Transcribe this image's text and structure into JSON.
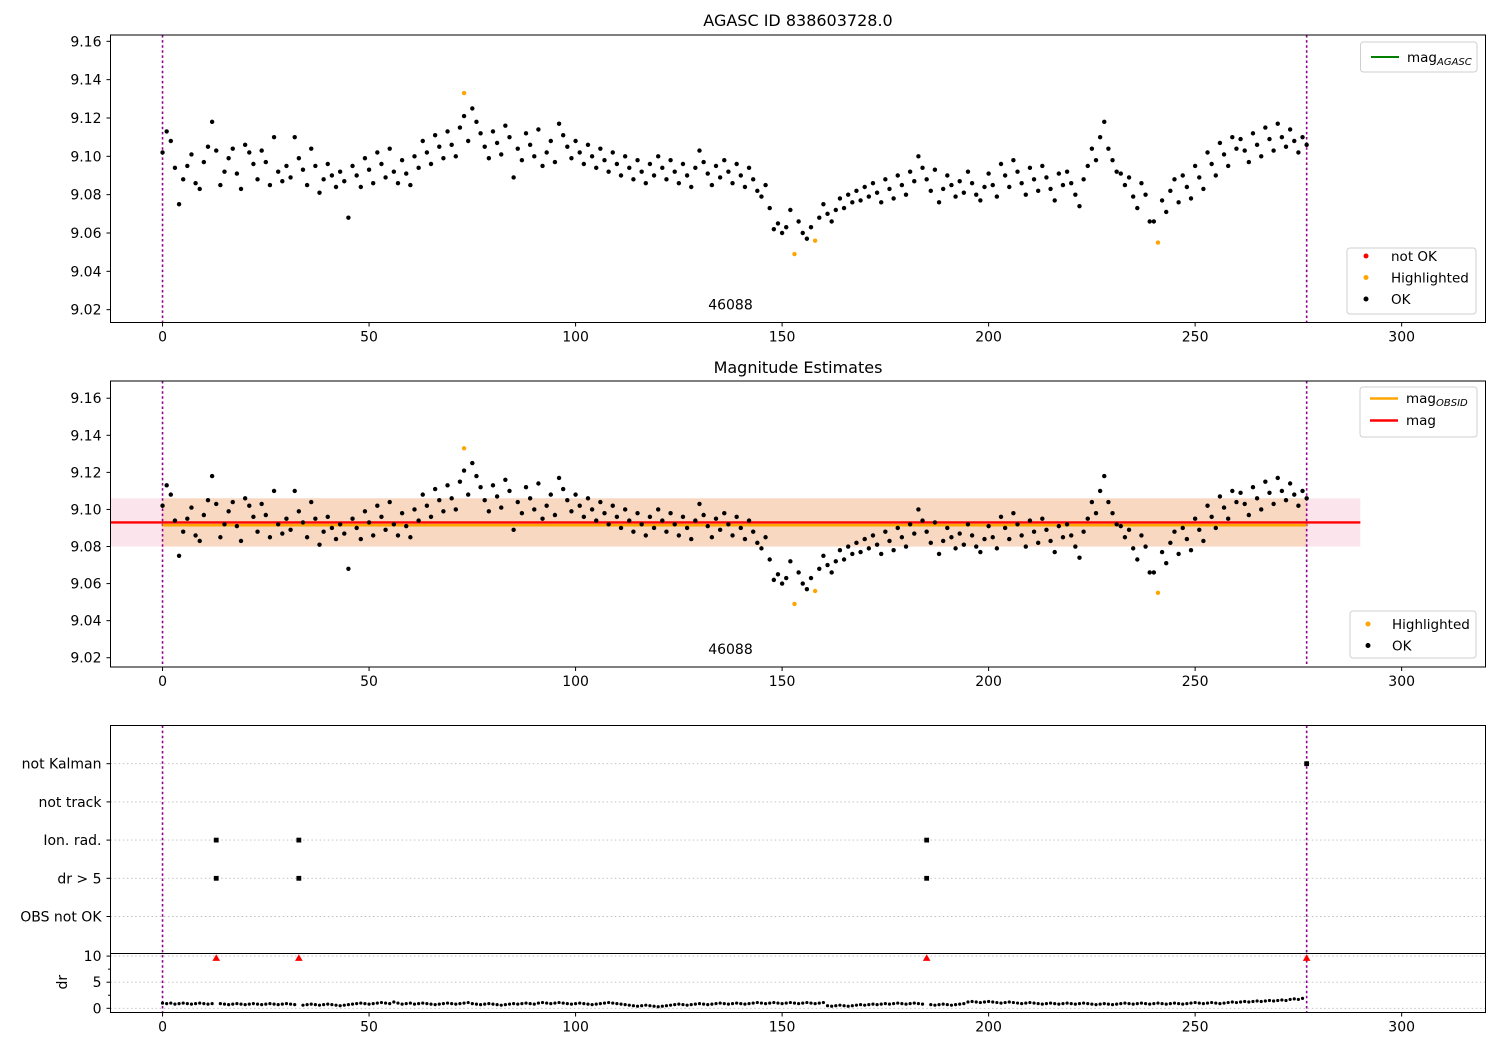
{
  "figure_titles": {
    "top": "AGASC ID 838603728.0",
    "middle": "Magnitude Estimates"
  },
  "colors": {
    "ok": "#000000",
    "highlighted": "#FFA500",
    "not_ok": "#FF0000",
    "mag_agasc_line": "#007F00",
    "mag_obsid_line": "#FFA500",
    "mag_line": "#FF0000",
    "band_outer": "#FBE4EB",
    "band_inner": "#F9D8C2",
    "vline": "#8F008F",
    "grid": "#BDBDBD",
    "frame": "#000000"
  },
  "panels": {
    "top": {
      "title": "AGASC ID 838603728.0",
      "ytick_labels": [
        "9.16",
        "9.14",
        "9.12",
        "9.10",
        "9.08",
        "9.06",
        "9.04",
        "9.02"
      ],
      "xtick_labels": [
        "0",
        "50",
        "100",
        "150",
        "200",
        "250",
        "300"
      ],
      "legend_line": {
        "base": "mag",
        "sub": "AGASC"
      },
      "legend_markers": [
        {
          "label": "not OK",
          "color": "#FF0000"
        },
        {
          "label": "Highlighted",
          "color": "#FFA500"
        },
        {
          "label": "OK",
          "color": "#000000"
        }
      ],
      "annotation": "46088"
    },
    "middle": {
      "title": "Magnitude Estimates",
      "ytick_labels": [
        "9.16",
        "9.14",
        "9.12",
        "9.10",
        "9.08",
        "9.06",
        "9.04",
        "9.02"
      ],
      "xtick_labels": [
        "0",
        "50",
        "100",
        "150",
        "200",
        "250",
        "300"
      ],
      "legend_lines": [
        {
          "base": "mag",
          "sub": "OBSID",
          "color": "#FFA500"
        },
        {
          "base": "mag",
          "sub": "",
          "color": "#FF0000"
        }
      ],
      "legend_markers": [
        {
          "label": "Highlighted",
          "color": "#FFA500"
        },
        {
          "label": "OK",
          "color": "#000000"
        }
      ],
      "annotation": "46088"
    },
    "bottom": {
      "category_labels": [
        "not Kalman",
        "not track",
        "Ion. rad.",
        "dr > 5",
        "OBS not OK"
      ],
      "numeric_tick_labels": [
        "10",
        "5",
        "0"
      ],
      "ylabel": "dr",
      "xtick_labels": [
        "0",
        "50",
        "100",
        "150",
        "200",
        "250",
        "300"
      ]
    }
  },
  "chart_data": {
    "type": "scatter",
    "title": "AGASC ID 838603728.0",
    "x_axis": {
      "ticks": [
        0,
        50,
        100,
        150,
        200,
        250,
        300
      ],
      "lim": [
        -12.6,
        320.3
      ]
    },
    "mag_axis": {
      "ticks": [
        9.16,
        9.14,
        9.12,
        9.1,
        9.08,
        9.06,
        9.04,
        9.02
      ]
    },
    "vlines": [
      0,
      277
    ],
    "obsid_label": {
      "text": "46088",
      "x": 137.5
    },
    "mag_mean_line": 9.093,
    "mag_mean_span": [
      -12.6,
      290
    ],
    "mag_band": [
      9.08,
      9.106
    ],
    "obsid_mag_line": 9.0915,
    "obsid_span": [
      0,
      277
    ],
    "mag_highlighted": [
      [
        73,
        9.133
      ],
      [
        153,
        9.049
      ],
      [
        158,
        9.056
      ],
      [
        241,
        9.055
      ]
    ],
    "mag_ok": [
      [
        0,
        9.102
      ],
      [
        1,
        9.113
      ],
      [
        2,
        9.108
      ],
      [
        3,
        9.094
      ],
      [
        4,
        9.075
      ],
      [
        5,
        9.088
      ],
      [
        6,
        9.095
      ],
      [
        7,
        9.101
      ],
      [
        8,
        9.086
      ],
      [
        9,
        9.083
      ],
      [
        10,
        9.097
      ],
      [
        11,
        9.105
      ],
      [
        12,
        9.118
      ],
      [
        13,
        9.103
      ],
      [
        14,
        9.085
      ],
      [
        15,
        9.092
      ],
      [
        16,
        9.099
      ],
      [
        17,
        9.104
      ],
      [
        18,
        9.091
      ],
      [
        19,
        9.083
      ],
      [
        20,
        9.106
      ],
      [
        21,
        9.102
      ],
      [
        22,
        9.096
      ],
      [
        23,
        9.088
      ],
      [
        24,
        9.103
      ],
      [
        25,
        9.097
      ],
      [
        26,
        9.085
      ],
      [
        27,
        9.11
      ],
      [
        28,
        9.092
      ],
      [
        29,
        9.087
      ],
      [
        30,
        9.095
      ],
      [
        31,
        9.089
      ],
      [
        32,
        9.11
      ],
      [
        33,
        9.099
      ],
      [
        34,
        9.093
      ],
      [
        35,
        9.085
      ],
      [
        36,
        9.104
      ],
      [
        37,
        9.095
      ],
      [
        38,
        9.081
      ],
      [
        39,
        9.088
      ],
      [
        40,
        9.096
      ],
      [
        41,
        9.09
      ],
      [
        42,
        9.084
      ],
      [
        43,
        9.092
      ],
      [
        44,
        9.087
      ],
      [
        45,
        9.068
      ],
      [
        46,
        9.095
      ],
      [
        47,
        9.09
      ],
      [
        48,
        9.084
      ],
      [
        49,
        9.099
      ],
      [
        50,
        9.093
      ],
      [
        51,
        9.086
      ],
      [
        52,
        9.102
      ],
      [
        53,
        9.096
      ],
      [
        54,
        9.089
      ],
      [
        55,
        9.104
      ],
      [
        56,
        9.092
      ],
      [
        57,
        9.086
      ],
      [
        58,
        9.098
      ],
      [
        59,
        9.091
      ],
      [
        60,
        9.085
      ],
      [
        61,
        9.1
      ],
      [
        62,
        9.094
      ],
      [
        63,
        9.108
      ],
      [
        64,
        9.102
      ],
      [
        65,
        9.096
      ],
      [
        66,
        9.111
      ],
      [
        67,
        9.105
      ],
      [
        68,
        9.099
      ],
      [
        69,
        9.113
      ],
      [
        70,
        9.106
      ],
      [
        71,
        9.1
      ],
      [
        72,
        9.115
      ],
      [
        73,
        9.121
      ],
      [
        74,
        9.108
      ],
      [
        75,
        9.125
      ],
      [
        76,
        9.118
      ],
      [
        77,
        9.112
      ],
      [
        78,
        9.105
      ],
      [
        79,
        9.099
      ],
      [
        80,
        9.113
      ],
      [
        81,
        9.107
      ],
      [
        82,
        9.101
      ],
      [
        83,
        9.116
      ],
      [
        84,
        9.11
      ],
      [
        85,
        9.089
      ],
      [
        86,
        9.104
      ],
      [
        87,
        9.098
      ],
      [
        88,
        9.112
      ],
      [
        89,
        9.106
      ],
      [
        90,
        9.1
      ],
      [
        91,
        9.114
      ],
      [
        92,
        9.095
      ],
      [
        93,
        9.102
      ],
      [
        94,
        9.108
      ],
      [
        95,
        9.097
      ],
      [
        96,
        9.117
      ],
      [
        97,
        9.111
      ],
      [
        98,
        9.105
      ],
      [
        99,
        9.099
      ],
      [
        100,
        9.108
      ],
      [
        101,
        9.102
      ],
      [
        102,
        9.096
      ],
      [
        103,
        9.106
      ],
      [
        104,
        9.1
      ],
      [
        105,
        9.094
      ],
      [
        106,
        9.104
      ],
      [
        107,
        9.098
      ],
      [
        108,
        9.092
      ],
      [
        109,
        9.102
      ],
      [
        110,
        9.096
      ],
      [
        111,
        9.09
      ],
      [
        112,
        9.1
      ],
      [
        113,
        9.094
      ],
      [
        114,
        9.088
      ],
      [
        115,
        9.098
      ],
      [
        116,
        9.092
      ],
      [
        117,
        9.086
      ],
      [
        118,
        9.096
      ],
      [
        119,
        9.09
      ],
      [
        120,
        9.1
      ],
      [
        121,
        9.094
      ],
      [
        122,
        9.088
      ],
      [
        123,
        9.098
      ],
      [
        124,
        9.092
      ],
      [
        125,
        9.086
      ],
      [
        126,
        9.096
      ],
      [
        127,
        9.09
      ],
      [
        128,
        9.084
      ],
      [
        129,
        9.094
      ],
      [
        130,
        9.103
      ],
      [
        131,
        9.097
      ],
      [
        132,
        9.091
      ],
      [
        133,
        9.085
      ],
      [
        134,
        9.095
      ],
      [
        135,
        9.089
      ],
      [
        136,
        9.098
      ],
      [
        137,
        9.092
      ],
      [
        138,
        9.086
      ],
      [
        139,
        9.096
      ],
      [
        140,
        9.09
      ],
      [
        141,
        9.084
      ],
      [
        142,
        9.094
      ],
      [
        143,
        9.088
      ],
      [
        144,
        9.082
      ],
      [
        145,
        9.079
      ],
      [
        146,
        9.085
      ],
      [
        147,
        9.073
      ],
      [
        148,
        9.062
      ],
      [
        149,
        9.065
      ],
      [
        150,
        9.06
      ],
      [
        151,
        9.063
      ],
      [
        152,
        9.072
      ],
      [
        154,
        9.066
      ],
      [
        155,
        9.06
      ],
      [
        156,
        9.057
      ],
      [
        157,
        9.063
      ],
      [
        159,
        9.068
      ],
      [
        160,
        9.075
      ],
      [
        161,
        9.07
      ],
      [
        162,
        9.066
      ],
      [
        163,
        9.072
      ],
      [
        164,
        9.078
      ],
      [
        165,
        9.073
      ],
      [
        166,
        9.08
      ],
      [
        167,
        9.076
      ],
      [
        168,
        9.082
      ],
      [
        169,
        9.077
      ],
      [
        170,
        9.084
      ],
      [
        171,
        9.079
      ],
      [
        172,
        9.086
      ],
      [
        173,
        9.081
      ],
      [
        174,
        9.076
      ],
      [
        175,
        9.088
      ],
      [
        176,
        9.083
      ],
      [
        177,
        9.078
      ],
      [
        178,
        9.09
      ],
      [
        179,
        9.085
      ],
      [
        180,
        9.08
      ],
      [
        181,
        9.092
      ],
      [
        182,
        9.087
      ],
      [
        183,
        9.1
      ],
      [
        184,
        9.094
      ],
      [
        185,
        9.088
      ],
      [
        186,
        9.082
      ],
      [
        187,
        9.093
      ],
      [
        188,
        9.076
      ],
      [
        189,
        9.083
      ],
      [
        190,
        9.09
      ],
      [
        191,
        9.085
      ],
      [
        192,
        9.079
      ],
      [
        193,
        9.087
      ],
      [
        194,
        9.081
      ],
      [
        195,
        9.092
      ],
      [
        196,
        9.086
      ],
      [
        197,
        9.08
      ],
      [
        198,
        9.077
      ],
      [
        199,
        9.084
      ],
      [
        200,
        9.091
      ],
      [
        201,
        9.085
      ],
      [
        202,
        9.079
      ],
      [
        203,
        9.096
      ],
      [
        204,
        9.09
      ],
      [
        205,
        9.084
      ],
      [
        206,
        9.098
      ],
      [
        207,
        9.092
      ],
      [
        208,
        9.086
      ],
      [
        209,
        9.08
      ],
      [
        210,
        9.094
      ],
      [
        211,
        9.088
      ],
      [
        212,
        9.082
      ],
      [
        213,
        9.095
      ],
      [
        214,
        9.089
      ],
      [
        215,
        9.083
      ],
      [
        216,
        9.077
      ],
      [
        217,
        9.091
      ],
      [
        218,
        9.085
      ],
      [
        219,
        9.092
      ],
      [
        220,
        9.086
      ],
      [
        221,
        9.08
      ],
      [
        222,
        9.074
      ],
      [
        223,
        9.088
      ],
      [
        224,
        9.095
      ],
      [
        225,
        9.104
      ],
      [
        226,
        9.098
      ],
      [
        227,
        9.11
      ],
      [
        228,
        9.118
      ],
      [
        229,
        9.104
      ],
      [
        230,
        9.098
      ],
      [
        231,
        9.092
      ],
      [
        232,
        9.091
      ],
      [
        233,
        9.085
      ],
      [
        234,
        9.089
      ],
      [
        235,
        9.079
      ],
      [
        236,
        9.073
      ],
      [
        237,
        9.086
      ],
      [
        238,
        9.08
      ],
      [
        239,
        9.066
      ],
      [
        240,
        9.066
      ],
      [
        242,
        9.077
      ],
      [
        243,
        9.071
      ],
      [
        244,
        9.082
      ],
      [
        245,
        9.088
      ],
      [
        246,
        9.076
      ],
      [
        247,
        9.09
      ],
      [
        248,
        9.084
      ],
      [
        249,
        9.078
      ],
      [
        250,
        9.095
      ],
      [
        251,
        9.089
      ],
      [
        252,
        9.083
      ],
      [
        253,
        9.102
      ],
      [
        254,
        9.096
      ],
      [
        255,
        9.09
      ],
      [
        256,
        9.107
      ],
      [
        257,
        9.101
      ],
      [
        258,
        9.095
      ],
      [
        259,
        9.11
      ],
      [
        260,
        9.104
      ],
      [
        261,
        9.109
      ],
      [
        262,
        9.103
      ],
      [
        263,
        9.097
      ],
      [
        264,
        9.112
      ],
      [
        265,
        9.106
      ],
      [
        266,
        9.1
      ],
      [
        267,
        9.115
      ],
      [
        268,
        9.109
      ],
      [
        269,
        9.103
      ],
      [
        270,
        9.117
      ],
      [
        271,
        9.11
      ],
      [
        272,
        9.105
      ],
      [
        273,
        9.114
      ],
      [
        274,
        9.108
      ],
      [
        275,
        9.102
      ],
      [
        276,
        9.11
      ],
      [
        277,
        9.106
      ]
    ],
    "flags": {
      "ion_rad": [
        13,
        33,
        185
      ],
      "dr_gt_5": [
        13,
        33,
        185
      ],
      "not_kalman": [
        277
      ],
      "not_track": [],
      "obs_not_ok": []
    },
    "dr_clipped_red": [
      13,
      33,
      185,
      277
    ],
    "dr_axis": {
      "ticks": [
        0,
        5,
        10
      ],
      "clip_line": 10.5
    },
    "dr_values": [
      1.0,
      0.9,
      1.0,
      0.8,
      0.9,
      1.0,
      0.9,
      0.8,
      0.9,
      1.0,
      0.9,
      0.8,
      0.9,
      null,
      0.9,
      0.8,
      0.7,
      0.8,
      0.9,
      0.8,
      0.7,
      0.8,
      0.9,
      0.8,
      0.7,
      0.8,
      0.9,
      0.8,
      0.7,
      0.8,
      0.9,
      0.8,
      0.7,
      null,
      0.6,
      0.7,
      0.8,
      0.7,
      0.6,
      0.7,
      0.8,
      0.7,
      0.6,
      0.5,
      0.6,
      0.7,
      0.8,
      0.9,
      1.0,
      0.9,
      0.8,
      0.9,
      1.0,
      1.1,
      1.0,
      0.9,
      1.2,
      1.0,
      0.8,
      0.9,
      1.0,
      0.8,
      0.9,
      1.0,
      0.9,
      0.8,
      0.7,
      0.8,
      0.9,
      1.0,
      0.9,
      0.8,
      0.9,
      1.0,
      1.1,
      0.9,
      0.8,
      0.7,
      0.8,
      0.9,
      0.8,
      0.7,
      0.6,
      0.7,
      0.8,
      0.9,
      0.8,
      0.9,
      1.0,
      0.9,
      0.8,
      1.0,
      1.1,
      1.0,
      0.9,
      1.0,
      1.1,
      1.0,
      0.9,
      0.8,
      0.9,
      1.0,
      0.9,
      0.8,
      0.7,
      0.8,
      0.9,
      1.0,
      1.1,
      1.0,
      0.9,
      0.8,
      0.7,
      0.6,
      0.5,
      0.4,
      0.5,
      0.6,
      0.5,
      0.4,
      0.3,
      0.4,
      0.5,
      0.6,
      0.7,
      0.8,
      0.7,
      0.6,
      0.7,
      0.8,
      0.9,
      0.8,
      0.7,
      0.8,
      0.9,
      1.0,
      0.9,
      0.8,
      0.9,
      1.0,
      0.9,
      0.8,
      0.9,
      1.0,
      1.1,
      1.0,
      0.9,
      1.0,
      1.1,
      1.0,
      0.9,
      1.0,
      1.1,
      1.0,
      0.9,
      1.0,
      1.1,
      1.0,
      0.9,
      1.0,
      1.1,
      0.5,
      0.4,
      0.5,
      0.6,
      0.5,
      0.4,
      0.5,
      0.6,
      0.7,
      0.6,
      0.7,
      0.8,
      0.7,
      0.8,
      0.9,
      0.8,
      0.9,
      1.0,
      0.9,
      0.8,
      0.9,
      1.0,
      0.9,
      0.8,
      null,
      0.7,
      0.6,
      0.7,
      0.8,
      0.7,
      0.6,
      0.7,
      0.8,
      0.9,
      1.2,
      1.3,
      1.2,
      1.1,
      1.2,
      1.3,
      1.2,
      1.1,
      1.0,
      1.1,
      1.2,
      1.1,
      1.0,
      0.9,
      1.0,
      1.1,
      1.0,
      0.9,
      0.8,
      0.9,
      1.0,
      0.9,
      0.8,
      0.9,
      1.0,
      0.9,
      0.8,
      0.9,
      1.0,
      0.9,
      0.8,
      0.7,
      0.8,
      0.9,
      0.8,
      0.7,
      0.8,
      0.9,
      1.0,
      0.9,
      0.8,
      0.9,
      1.0,
      0.9,
      0.8,
      0.9,
      1.0,
      0.9,
      0.8,
      0.9,
      1.0,
      0.9,
      0.8,
      0.9,
      1.0,
      1.1,
      1.0,
      0.9,
      1.0,
      1.1,
      1.0,
      0.9,
      1.0,
      1.1,
      1.2,
      1.1,
      1.2,
      1.3,
      1.2,
      1.3,
      1.4,
      1.3,
      1.4,
      1.5,
      1.4,
      1.5,
      1.6,
      1.5,
      1.7,
      1.8,
      1.7,
      1.9,
      null
    ]
  }
}
